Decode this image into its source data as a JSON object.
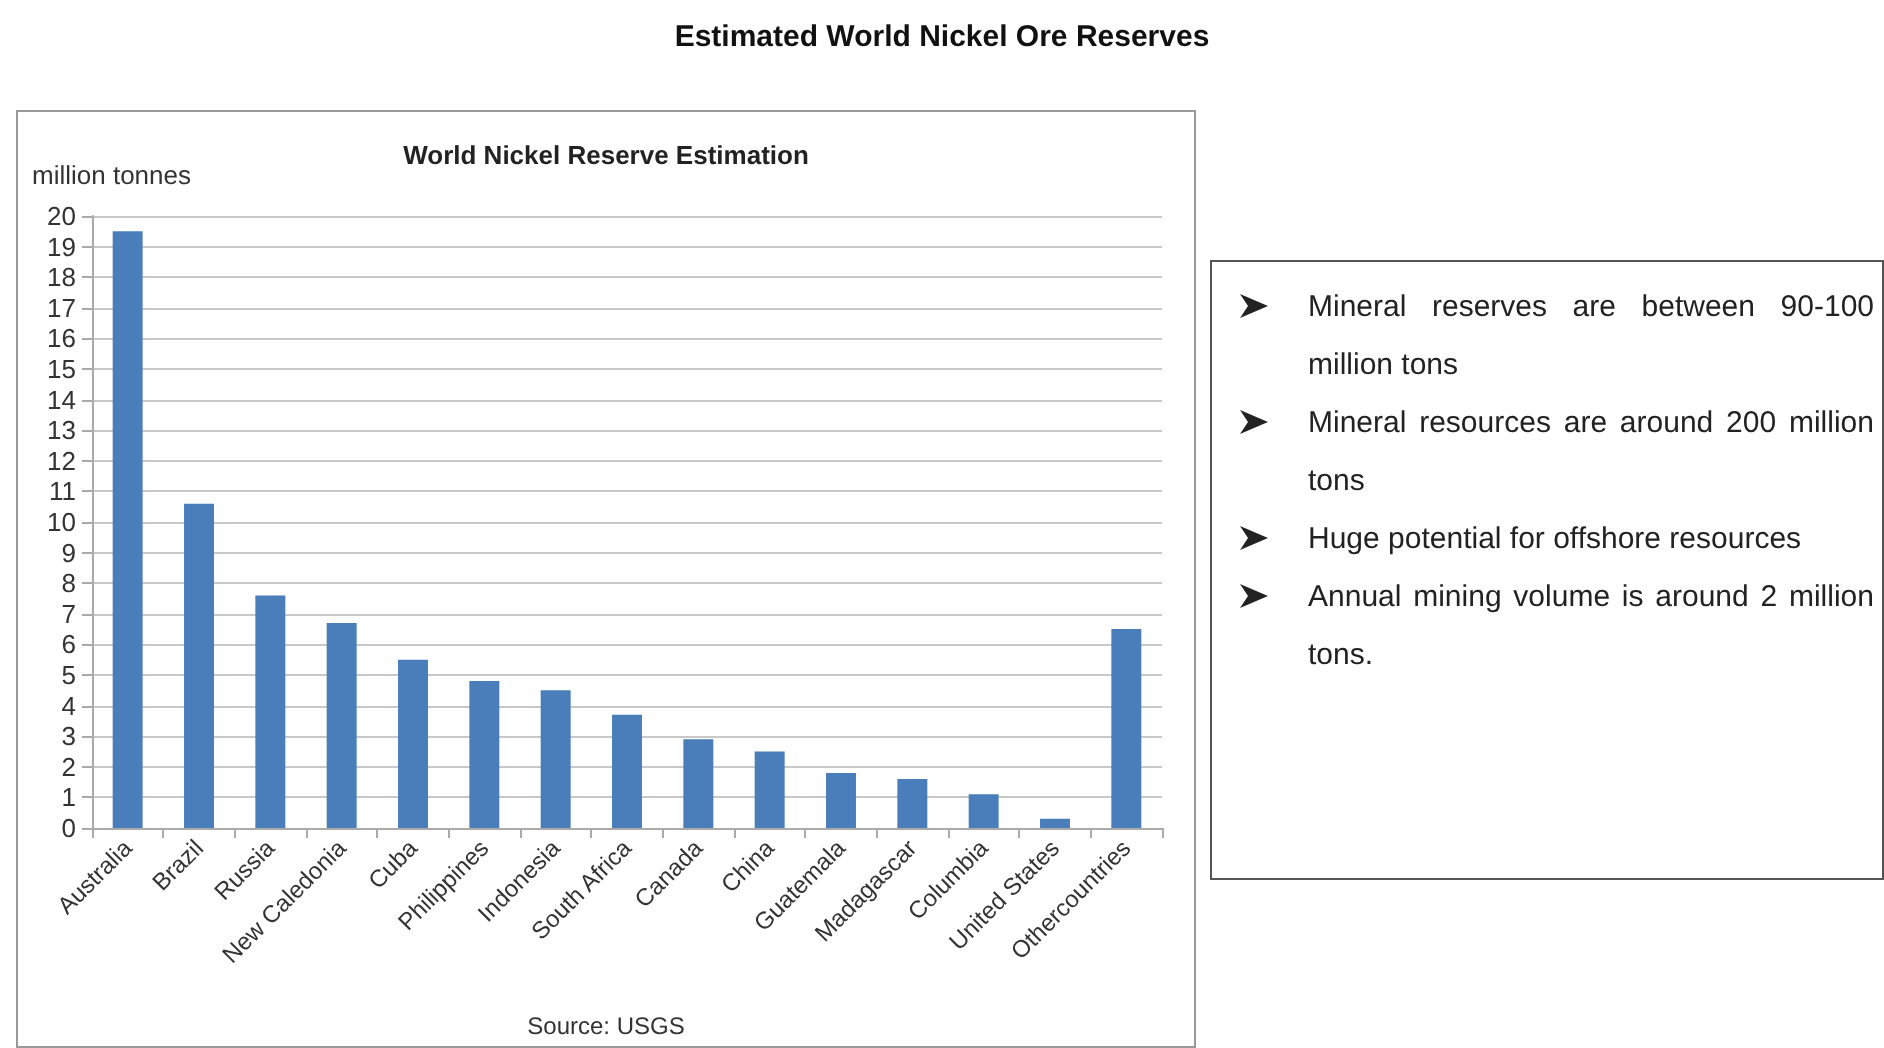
{
  "chart_data": [
    {
      "type": "bar",
      "title": "Estimated World Nickel Ore Reserves",
      "subtitle": "World Nickel Reserve Estimation",
      "ylabel": "million tonnes",
      "categories": [
        "Australia",
        "Brazil",
        "Russia",
        "New Caledonia",
        "Cuba",
        "Philippines",
        "Indonesia",
        "South Africa",
        "Canada",
        "China",
        "Guatemala",
        "Madagascar",
        "Columbia",
        "United States",
        "Othercountries"
      ],
      "values": [
        19.5,
        10.6,
        7.6,
        6.7,
        5.5,
        4.8,
        4.5,
        3.7,
        2.9,
        2.5,
        1.8,
        1.6,
        1.1,
        0.3,
        6.5
      ],
      "color": "#4a7ebb",
      "ylim": [
        0,
        20
      ],
      "yticks": [
        0,
        1,
        2,
        3,
        4,
        5,
        6,
        7,
        8,
        9,
        10,
        11,
        12,
        13,
        14,
        15,
        16,
        17,
        18,
        19,
        20
      ],
      "grid": "y",
      "annotations": [
        "Source: USGS"
      ]
    },
    {
      "type": "other",
      "annotations": [
        "Mineral reserves are between 90-100 million tons",
        "Mineral resources are around 200 million tons",
        "Huge potential for offshore resources",
        "Annual mining volume is around 2 million tons."
      ]
    }
  ]
}
